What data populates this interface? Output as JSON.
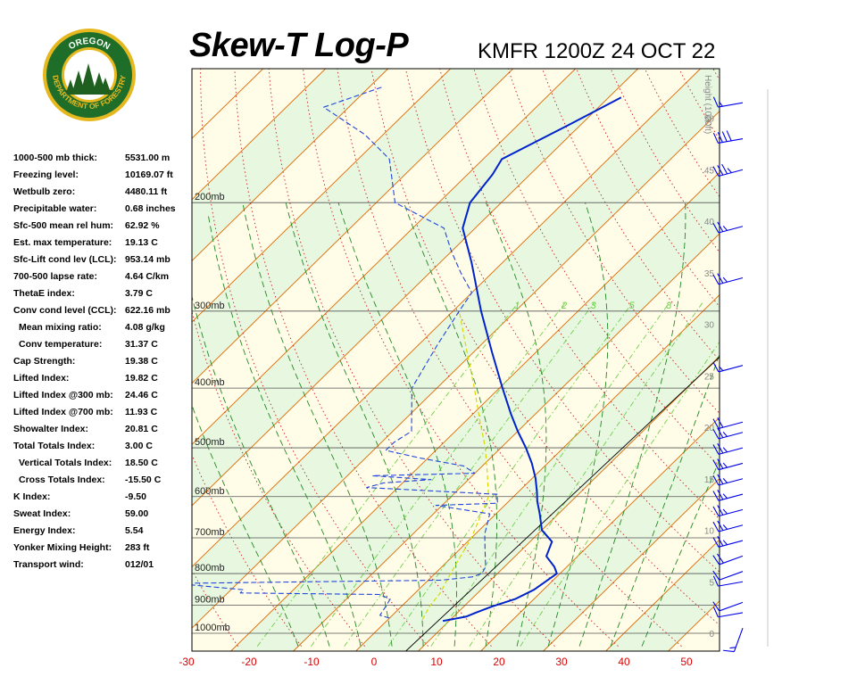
{
  "header": {
    "title": "Skew-T Log-P",
    "station_time": "KMFR 1200Z 24 OCT 22"
  },
  "logo": {
    "top_text": "OREGON",
    "ring_text": "DEPARTMENT OF FORESTRY",
    "colors": {
      "ring": "#1e6e2a",
      "gold": "#e6b820",
      "sky": "#ffffff",
      "trees": "#1f5f20"
    }
  },
  "indices": [
    {
      "label": "1000-500 mb thick:",
      "value": "5531.00 m",
      "indent": false
    },
    {
      "label": "Freezing level:",
      "value": "10169.07 ft",
      "indent": false
    },
    {
      "label": "Wetbulb zero:",
      "value": "4480.11 ft",
      "indent": false
    },
    {
      "label": "Precipitable water:",
      "value": "0.68 inches",
      "indent": false
    },
    {
      "label": "Sfc-500 mean rel hum:",
      "value": "62.92 %",
      "indent": false
    },
    {
      "label": "Est. max temperature:",
      "value": "19.13 C",
      "indent": false
    },
    {
      "label": "Sfc-Lift cond lev (LCL):",
      "value": "953.14 mb",
      "indent": false
    },
    {
      "label": "700-500 lapse rate:",
      "value": "4.64 C/km",
      "indent": false
    },
    {
      "label": "ThetaE index:",
      "value": "3.79 C",
      "indent": false
    },
    {
      "label": "Conv cond level (CCL):",
      "value": "622.16 mb",
      "indent": false
    },
    {
      "label": "Mean mixing ratio:",
      "value": "4.08 g/kg",
      "indent": true
    },
    {
      "label": "Conv temperature:",
      "value": "31.37 C",
      "indent": true
    },
    {
      "label": "Cap Strength:",
      "value": "19.38 C",
      "indent": false
    },
    {
      "label": "Lifted Index:",
      "value": "19.82 C",
      "indent": false
    },
    {
      "label": "Lifted Index @300 mb:",
      "value": "24.46 C",
      "indent": false
    },
    {
      "label": "Lifted Index @700 mb:",
      "value": "11.93 C",
      "indent": false
    },
    {
      "label": "Showalter Index:",
      "value": "20.81 C",
      "indent": false
    },
    {
      "label": "Total Totals Index:",
      "value": "3.00 C",
      "indent": false
    },
    {
      "label": "Vertical Totals Index:",
      "value": "18.50 C",
      "indent": true
    },
    {
      "label": "Cross Totals Index:",
      "value": "-15.50 C",
      "indent": true
    },
    {
      "label": "K Index:",
      "value": "-9.50",
      "indent": false
    },
    {
      "label": "Sweat Index:",
      "value": "59.00",
      "indent": false
    },
    {
      "label": "Energy Index:",
      "value": "5.54",
      "indent": false
    },
    {
      "label": "Yonker Mixing Height:",
      "value": "283 ft",
      "indent": false
    },
    {
      "label": "Transport wind:",
      "value": "012/01",
      "indent": false
    }
  ],
  "chart_data": {
    "type": "skew-t",
    "x_ticks": [
      -30,
      -20,
      -10,
      0,
      10,
      20,
      30,
      40,
      50
    ],
    "x_tick_labels": [
      "-30",
      "-20",
      "-10",
      "0",
      "10",
      "20",
      "30",
      "40",
      "50"
    ],
    "isobars_mb": [
      1000,
      900,
      800,
      700,
      600,
      500,
      400,
      300,
      200
    ],
    "isobar_labels": [
      "1000mb",
      "900mb",
      "800mb",
      "700mb",
      "600mb",
      "500mb",
      "400mb",
      "300mb",
      "200mb"
    ],
    "height_axis_label": "Height (1000ft)",
    "height_ticks_kft": [
      0,
      5,
      10,
      15,
      20,
      25,
      30,
      35,
      40,
      45,
      50
    ],
    "mixing_ratio_labels": [
      "1",
      "2",
      "3",
      "5",
      "8"
    ],
    "temperature_profile": [
      {
        "p": 955,
        "t": 9.0
      },
      {
        "p": 940,
        "t": 12.0
      },
      {
        "p": 925,
        "t": 13.0
      },
      {
        "p": 905,
        "t": 14.5
      },
      {
        "p": 880,
        "t": 17.0
      },
      {
        "p": 850,
        "t": 18.5
      },
      {
        "p": 800,
        "t": 19.5
      },
      {
        "p": 780,
        "t": 18.0
      },
      {
        "p": 750,
        "t": 15.0
      },
      {
        "p": 710,
        "t": 13.5
      },
      {
        "p": 680,
        "t": 10.0
      },
      {
        "p": 640,
        "t": 7.0
      },
      {
        "p": 610,
        "t": 4.5
      },
      {
        "p": 590,
        "t": 3.0
      },
      {
        "p": 560,
        "t": 0.5
      },
      {
        "p": 530,
        "t": -2.5
      },
      {
        "p": 500,
        "t": -6.0
      },
      {
        "p": 470,
        "t": -10.0
      },
      {
        "p": 440,
        "t": -14.0
      },
      {
        "p": 400,
        "t": -19.5
      },
      {
        "p": 350,
        "t": -27.0
      },
      {
        "p": 300,
        "t": -35.5
      },
      {
        "p": 250,
        "t": -45.0
      },
      {
        "p": 220,
        "t": -52.0
      },
      {
        "p": 200,
        "t": -55.0
      },
      {
        "p": 180,
        "t": -56.0
      },
      {
        "p": 170,
        "t": -57.0
      },
      {
        "p": 150,
        "t": -52.0
      },
      {
        "p": 135,
        "t": -48.0
      }
    ],
    "dewpoint_profile": [
      {
        "p": 945,
        "t": 0.0
      },
      {
        "p": 935,
        "t": -2.0
      },
      {
        "p": 905,
        "t": -2.5
      },
      {
        "p": 880,
        "t": -3.0
      },
      {
        "p": 865,
        "t": -5.5
      },
      {
        "p": 860,
        "t": -28.0
      },
      {
        "p": 850,
        "t": -28.0
      },
      {
        "p": 830,
        "t": -40.0
      },
      {
        "p": 820,
        "t": 2.0
      },
      {
        "p": 810,
        "t": 6.5
      },
      {
        "p": 800,
        "t": 7.5
      },
      {
        "p": 780,
        "t": 7.0
      },
      {
        "p": 730,
        "t": 4.0
      },
      {
        "p": 690,
        "t": 1.5
      },
      {
        "p": 640,
        "t": -1.0
      },
      {
        "p": 620,
        "t": -11.0
      },
      {
        "p": 615,
        "t": -1.5
      },
      {
        "p": 595,
        "t": -3.0
      },
      {
        "p": 580,
        "t": -25.0
      },
      {
        "p": 570,
        "t": -23.0
      },
      {
        "p": 563,
        "t": -16.0
      },
      {
        "p": 555,
        "t": -26.0
      },
      {
        "p": 550,
        "t": -10.0
      },
      {
        "p": 535,
        "t": -13.0
      },
      {
        "p": 520,
        "t": -21.0
      },
      {
        "p": 505,
        "t": -28.0
      },
      {
        "p": 490,
        "t": -28.0
      },
      {
        "p": 470,
        "t": -27.0
      },
      {
        "p": 400,
        "t": -34.0
      },
      {
        "p": 340,
        "t": -37.0
      },
      {
        "p": 300,
        "t": -39.0
      },
      {
        "p": 280,
        "t": -40.0
      },
      {
        "p": 260,
        "t": -45.0
      },
      {
        "p": 240,
        "t": -50.0
      },
      {
        "p": 220,
        "t": -55.0
      },
      {
        "p": 200,
        "t": -67.0
      },
      {
        "p": 170,
        "t": -75.0
      },
      {
        "p": 155,
        "t": -83.0
      },
      {
        "p": 140,
        "t": -94.0
      },
      {
        "p": 130,
        "t": -88.0
      }
    ],
    "parcel_path": [
      {
        "p": 950,
        "t": 5.5
      },
      {
        "p": 905,
        "t": 4.5
      },
      {
        "p": 860,
        "t": 4.0
      },
      {
        "p": 820,
        "t": 3.0
      },
      {
        "p": 780,
        "t": 2.0
      },
      {
        "p": 700,
        "t": 0.0
      },
      {
        "p": 600,
        "t": -4.0
      },
      {
        "p": 550,
        "t": -8.0
      },
      {
        "p": 500,
        "t": -12.5
      },
      {
        "p": 450,
        "t": -18.0
      },
      {
        "p": 400,
        "t": -24.0
      },
      {
        "p": 350,
        "t": -31.0
      },
      {
        "p": 300,
        "t": -39.0
      }
    ],
    "wind_profile_kft": [
      {
        "h": 0.5,
        "dir": 200,
        "spd": 15
      },
      {
        "h": 2.0,
        "dir": 260,
        "spd": 10
      },
      {
        "h": 3.0,
        "dir": 250,
        "spd": 10
      },
      {
        "h": 5.0,
        "dir": 260,
        "spd": 10
      },
      {
        "h": 6.0,
        "dir": 250,
        "spd": 10
      },
      {
        "h": 7.5,
        "dir": 250,
        "spd": 20
      },
      {
        "h": 9.0,
        "dir": 255,
        "spd": 25
      },
      {
        "h": 10.5,
        "dir": 255,
        "spd": 25
      },
      {
        "h": 12.0,
        "dir": 255,
        "spd": 25
      },
      {
        "h": 13.5,
        "dir": 255,
        "spd": 25
      },
      {
        "h": 15.0,
        "dir": 255,
        "spd": 25
      },
      {
        "h": 16.5,
        "dir": 255,
        "spd": 25
      },
      {
        "h": 18.0,
        "dir": 255,
        "spd": 25
      },
      {
        "h": 19.5,
        "dir": 255,
        "spd": 25
      },
      {
        "h": 20.5,
        "dir": 255,
        "spd": 20
      },
      {
        "h": 26.0,
        "dir": 255,
        "spd": 15
      },
      {
        "h": 34.5,
        "dir": 255,
        "spd": 25
      },
      {
        "h": 39.5,
        "dir": 255,
        "spd": 25
      },
      {
        "h": 45.0,
        "dir": 255,
        "spd": 35
      },
      {
        "h": 48.0,
        "dir": 260,
        "spd": 40
      },
      {
        "h": 51.5,
        "dir": 260,
        "spd": 15
      }
    ],
    "colors": {
      "background_light": "#fffde8",
      "background_green": "#e8f8e0",
      "isotherm": "#e06800",
      "dry_adiabat": "#cc2020",
      "moist_adiabat": "#228822",
      "mixing_ratio": "#6fcf4a",
      "temperature": "#0022cc",
      "dewpoint": "#2244dd",
      "parcel": "#d8d800",
      "wind_barb": "#0000ee",
      "x_tick": "#dd0000"
    }
  }
}
